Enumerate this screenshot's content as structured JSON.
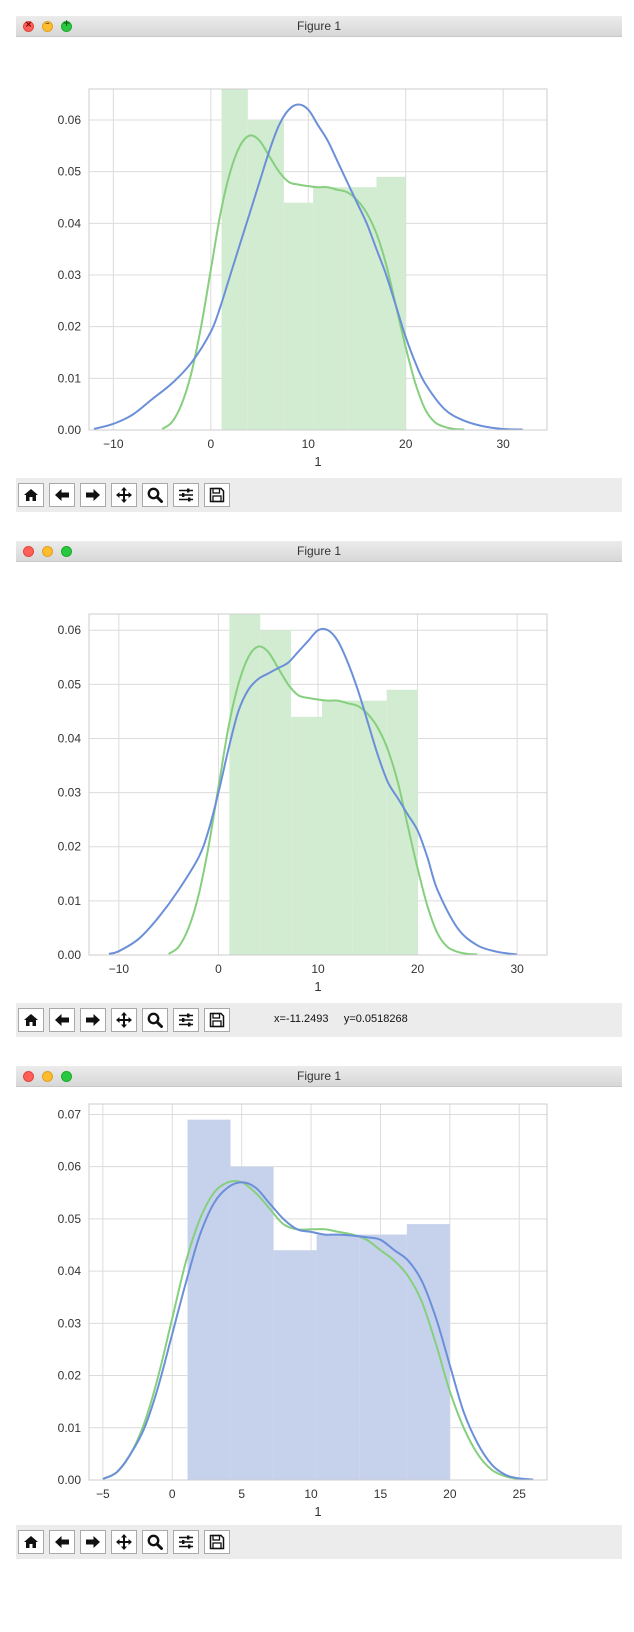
{
  "windows": [
    {
      "title": "Figure 1",
      "coords_text": "",
      "chart_data": {
        "type": "histogram+kde",
        "xlabel": "1",
        "xlim": [
          -12.5,
          34.5
        ],
        "ylim": [
          0,
          0.066
        ],
        "xticks": [
          -10,
          0,
          10,
          20,
          30
        ],
        "xtick_labels": [
          "−10",
          "0",
          "10",
          "20",
          "30"
        ],
        "yticks": [
          0,
          0.01,
          0.02,
          0.03,
          0.04,
          0.05,
          0.06
        ],
        "ytick_labels": [
          "0.00",
          "0.01",
          "0.02",
          "0.03",
          "0.04",
          "0.05",
          "0.06"
        ],
        "grid": true,
        "hist": {
          "color": "#d2ecd1",
          "bins": [
            {
              "x0": 1.1,
              "x1": 3.8,
              "y": 0.066
            },
            {
              "x0": 3.8,
              "x1": 7.5,
              "y": 0.06
            },
            {
              "x0": 7.5,
              "x1": 10.5,
              "y": 0.044
            },
            {
              "x0": 10.5,
              "x1": 14.0,
              "y": 0.047
            },
            {
              "x0": 14.0,
              "x1": 17.0,
              "y": 0.047
            },
            {
              "x0": 17.0,
              "x1": 20.0,
              "y": 0.049
            }
          ]
        },
        "series": [
          {
            "color": "#86cf7e",
            "x": [
              -5,
              -4,
              -3,
              -2,
              -1,
              0,
              1,
              2,
              3,
              4,
              5,
              6,
              7,
              8,
              9,
              10,
              11,
              12,
              13,
              14,
              15,
              16,
              17,
              18,
              19,
              20,
              21,
              22,
              23,
              24,
              25,
              26
            ],
            "y": [
              0.0002,
              0.0015,
              0.005,
              0.011,
              0.02,
              0.031,
              0.042,
              0.05,
              0.055,
              0.057,
              0.056,
              0.053,
              0.05,
              0.048,
              0.0475,
              0.0472,
              0.047,
              0.047,
              0.0465,
              0.046,
              0.0445,
              0.042,
              0.038,
              0.032,
              0.024,
              0.016,
              0.009,
              0.004,
              0.0015,
              0.0006,
              0.0002,
              0.0001
            ]
          },
          {
            "color": "#6b8fd9",
            "x": [
              -12,
              -10,
              -8,
              -6,
              -4,
              -2,
              0,
              1,
              2,
              3,
              4,
              5,
              6,
              7,
              8,
              9,
              10,
              11,
              12,
              13,
              14,
              15,
              16,
              17,
              18,
              19,
              20,
              21,
              22,
              24,
              26,
              28,
              30,
              32
            ],
            "y": [
              0.0002,
              0.0012,
              0.003,
              0.006,
              0.009,
              0.013,
              0.019,
              0.024,
              0.03,
              0.036,
              0.042,
              0.048,
              0.054,
              0.059,
              0.062,
              0.063,
              0.062,
              0.059,
              0.056,
              0.052,
              0.048,
              0.044,
              0.04,
              0.035,
              0.03,
              0.024,
              0.018,
              0.013,
              0.009,
              0.004,
              0.0018,
              0.0007,
              0.0002,
              0.0001
            ]
          }
        ]
      }
    },
    {
      "title": "Figure 1",
      "coords_text": "x=-11.2493     y=0.0518268",
      "chart_data": {
        "type": "histogram+kde",
        "xlabel": "1",
        "xlim": [
          -13.0,
          33.0
        ],
        "ylim": [
          0,
          0.063
        ],
        "xticks": [
          -10,
          0,
          10,
          20,
          30
        ],
        "xtick_labels": [
          "−10",
          "0",
          "10",
          "20",
          "30"
        ],
        "yticks": [
          0,
          0.01,
          0.02,
          0.03,
          0.04,
          0.05,
          0.06
        ],
        "ytick_labels": [
          "0.00",
          "0.01",
          "0.02",
          "0.03",
          "0.04",
          "0.05",
          "0.06"
        ],
        "grid": true,
        "hist": {
          "color": "#d2ecd1",
          "bins": [
            {
              "x0": 1.1,
              "x1": 4.2,
              "y": 0.063
            },
            {
              "x0": 4.2,
              "x1": 7.3,
              "y": 0.06
            },
            {
              "x0": 7.3,
              "x1": 10.4,
              "y": 0.044
            },
            {
              "x0": 10.4,
              "x1": 13.5,
              "y": 0.047
            },
            {
              "x0": 13.5,
              "x1": 16.9,
              "y": 0.047
            },
            {
              "x0": 16.9,
              "x1": 20.0,
              "y": 0.049
            }
          ]
        },
        "series": [
          {
            "color": "#86cf7e",
            "x": [
              -5,
              -4,
              -3,
              -2,
              -1,
              0,
              1,
              2,
              3,
              4,
              5,
              6,
              7,
              8,
              9,
              10,
              11,
              12,
              13,
              14,
              15,
              16,
              17,
              18,
              19,
              20,
              21,
              22,
              23,
              24,
              25,
              26
            ],
            "y": [
              0.0002,
              0.0015,
              0.005,
              0.011,
              0.02,
              0.031,
              0.042,
              0.05,
              0.055,
              0.057,
              0.056,
              0.053,
              0.05,
              0.048,
              0.0475,
              0.0472,
              0.047,
              0.047,
              0.0465,
              0.046,
              0.0445,
              0.042,
              0.038,
              0.032,
              0.024,
              0.016,
              0.009,
              0.004,
              0.0015,
              0.0006,
              0.0002,
              0.0001
            ]
          },
          {
            "color": "#6b8fd9",
            "x": [
              -11,
              -10,
              -8,
              -6,
              -4,
              -2,
              -1,
              0,
              1,
              2,
              3,
              4,
              5,
              6,
              7,
              8,
              9,
              10,
              11,
              12,
              13,
              14,
              15,
              16,
              17,
              18,
              19,
              20,
              21,
              22,
              24,
              26,
              28,
              30
            ],
            "y": [
              0.0002,
              0.0007,
              0.003,
              0.007,
              0.012,
              0.018,
              0.023,
              0.03,
              0.038,
              0.045,
              0.049,
              0.051,
              0.052,
              0.053,
              0.054,
              0.056,
              0.058,
              0.06,
              0.06,
              0.058,
              0.054,
              0.049,
              0.043,
              0.037,
              0.032,
              0.029,
              0.026,
              0.023,
              0.018,
              0.012,
              0.005,
              0.0018,
              0.0006,
              0.0001
            ]
          }
        ]
      }
    },
    {
      "title": "Figure 1",
      "coords_text": "",
      "chart_data": {
        "type": "histogram+kde",
        "xlabel": "1",
        "xlim": [
          -6.0,
          27.0
        ],
        "ylim": [
          0,
          0.072
        ],
        "xticks": [
          -5,
          0,
          5,
          10,
          15,
          20,
          25
        ],
        "xtick_labels": [
          "−5",
          "0",
          "5",
          "10",
          "15",
          "20",
          "25"
        ],
        "yticks": [
          0,
          0.01,
          0.02,
          0.03,
          0.04,
          0.05,
          0.06,
          0.07
        ],
        "ytick_labels": [
          "0.00",
          "0.01",
          "0.02",
          "0.03",
          "0.04",
          "0.05",
          "0.06",
          "0.07"
        ],
        "grid": true,
        "hist": {
          "color": "#c6d2ec",
          "bins": [
            {
              "x0": 1.1,
              "x1": 4.2,
              "y": 0.069
            },
            {
              "x0": 4.2,
              "x1": 7.3,
              "y": 0.06
            },
            {
              "x0": 7.3,
              "x1": 10.4,
              "y": 0.044
            },
            {
              "x0": 10.4,
              "x1": 13.5,
              "y": 0.047
            },
            {
              "x0": 13.5,
              "x1": 16.9,
              "y": 0.047
            },
            {
              "x0": 16.9,
              "x1": 20.0,
              "y": 0.049
            }
          ]
        },
        "series": [
          {
            "color": "#86cf7e",
            "x": [
              -5,
              -4,
              -3,
              -2,
              -1,
              0,
              1,
              2,
              3,
              4,
              5,
              6,
              7,
              8,
              9,
              10,
              11,
              12,
              13,
              14,
              15,
              16,
              17,
              18,
              19,
              20,
              21,
              22,
              23,
              24,
              25,
              26
            ],
            "y": [
              0.0002,
              0.0015,
              0.005,
              0.011,
              0.02,
              0.031,
              0.042,
              0.05,
              0.055,
              0.057,
              0.057,
              0.055,
              0.052,
              0.049,
              0.048,
              0.048,
              0.048,
              0.0475,
              0.047,
              0.046,
              0.044,
              0.042,
              0.039,
              0.034,
              0.026,
              0.017,
              0.01,
              0.005,
              0.002,
              0.0007,
              0.0002,
              0.0001
            ]
          },
          {
            "color": "#6b8fd9",
            "x": [
              -5,
              -4,
              -3,
              -2,
              -1,
              0,
              1,
              2,
              3,
              4,
              5,
              6,
              7,
              8,
              9,
              10,
              11,
              12,
              13,
              14,
              15,
              16,
              17,
              18,
              19,
              20,
              21,
              22,
              23,
              24,
              25,
              26
            ],
            "y": [
              0.0002,
              0.0015,
              0.005,
              0.01,
              0.018,
              0.028,
              0.038,
              0.047,
              0.053,
              0.056,
              0.057,
              0.056,
              0.053,
              0.05,
              0.048,
              0.0475,
              0.047,
              0.047,
              0.0468,
              0.0465,
              0.046,
              0.044,
              0.042,
              0.038,
              0.031,
              0.022,
              0.013,
              0.007,
              0.003,
              0.001,
              0.0003,
              0.0001
            ]
          }
        ]
      }
    }
  ],
  "toolbar": {
    "icons": [
      "home-icon",
      "back-arrow-icon",
      "forward-arrow-icon",
      "pan-move-icon",
      "zoom-magnifier-icon",
      "configure-subplots-icon",
      "save-floppy-icon"
    ]
  },
  "theme": {
    "grid_color": "#dcdcdc",
    "axes_border": "#cccccc",
    "tick_text": "#333333"
  }
}
